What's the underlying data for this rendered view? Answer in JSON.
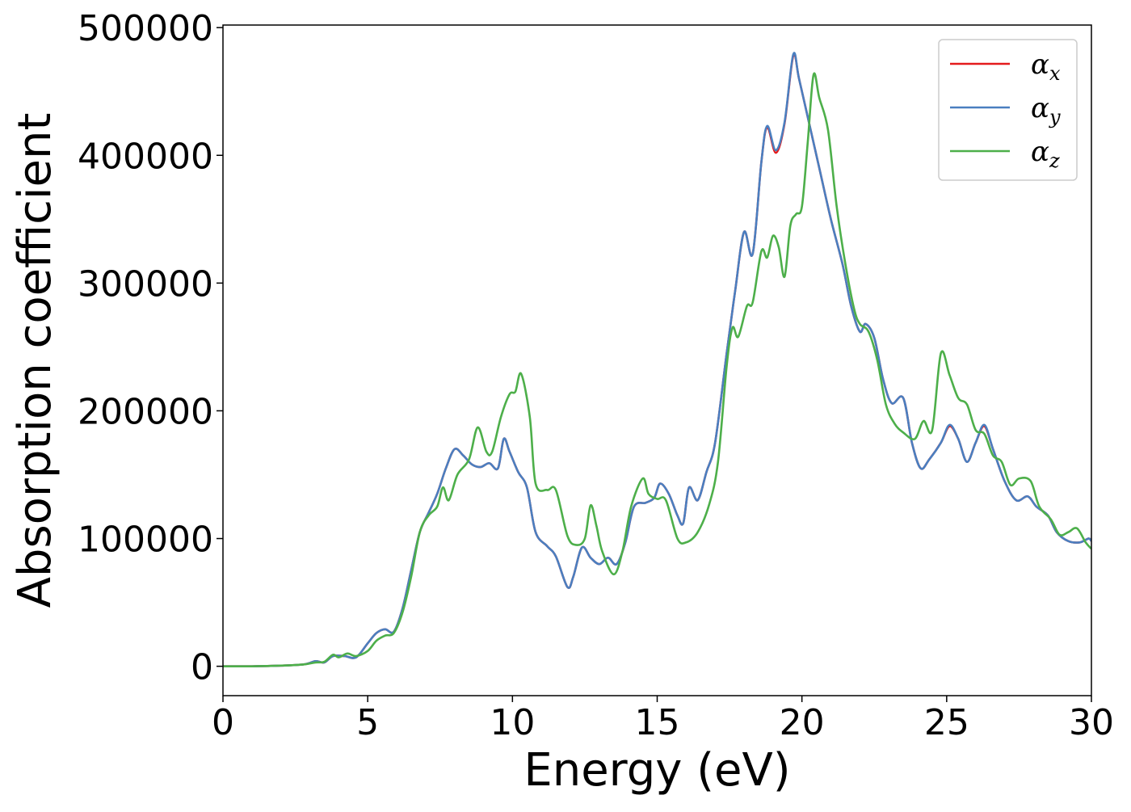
{
  "chart_data": {
    "type": "line",
    "xlabel": "Energy (eV)",
    "ylabel": "Absorption coefficient",
    "xlim": [
      0,
      30
    ],
    "ylim": [
      -23000,
      502000
    ],
    "x_ticks": [
      0,
      5,
      10,
      15,
      20,
      25,
      30
    ],
    "x_tick_labels": [
      "0",
      "5",
      "10",
      "15",
      "20",
      "25",
      "30"
    ],
    "y_ticks": [
      0,
      100000,
      200000,
      300000,
      400000,
      500000
    ],
    "y_tick_labels": [
      "0",
      "100000",
      "200000",
      "300000",
      "400000",
      "500000"
    ],
    "grid": false,
    "legend_placement": "top-right",
    "series": [
      {
        "name": "α_x",
        "label_symbol": "α",
        "label_subscript": "x",
        "color": "#e41a1c",
        "points": [
          [
            0,
            0
          ],
          [
            1,
            0
          ],
          [
            2,
            500
          ],
          [
            2.8,
            1500
          ],
          [
            3.2,
            4000
          ],
          [
            3.5,
            3000
          ],
          [
            3.8,
            8000
          ],
          [
            4.2,
            8000
          ],
          [
            4.6,
            7000
          ],
          [
            5.0,
            18000
          ],
          [
            5.3,
            26000
          ],
          [
            5.6,
            29000
          ],
          [
            5.9,
            27000
          ],
          [
            6.2,
            45000
          ],
          [
            6.5,
            75000
          ],
          [
            6.8,
            105000
          ],
          [
            7.1,
            120000
          ],
          [
            7.4,
            135000
          ],
          [
            7.7,
            155000
          ],
          [
            8.0,
            170000
          ],
          [
            8.3,
            165000
          ],
          [
            8.6,
            158000
          ],
          [
            8.9,
            156000
          ],
          [
            9.2,
            159000
          ],
          [
            9.5,
            155000
          ],
          [
            9.7,
            178000
          ],
          [
            9.9,
            168000
          ],
          [
            10.2,
            152000
          ],
          [
            10.5,
            140000
          ],
          [
            10.8,
            105000
          ],
          [
            11.2,
            94000
          ],
          [
            11.5,
            86000
          ],
          [
            11.9,
            62000
          ],
          [
            12.1,
            70000
          ],
          [
            12.4,
            93000
          ],
          [
            12.7,
            85000
          ],
          [
            13.0,
            80000
          ],
          [
            13.3,
            85000
          ],
          [
            13.6,
            80000
          ],
          [
            13.9,
            97000
          ],
          [
            14.2,
            125000
          ],
          [
            14.6,
            128000
          ],
          [
            14.9,
            132000
          ],
          [
            15.1,
            143000
          ],
          [
            15.4,
            135000
          ],
          [
            15.7,
            118000
          ],
          [
            15.9,
            112000
          ],
          [
            16.1,
            140000
          ],
          [
            16.4,
            130000
          ],
          [
            16.7,
            152000
          ],
          [
            17.0,
            175000
          ],
          [
            17.4,
            245000
          ],
          [
            17.7,
            295000
          ],
          [
            18.0,
            340000
          ],
          [
            18.3,
            323000
          ],
          [
            18.6,
            395000
          ],
          [
            18.8,
            422000
          ],
          [
            19.1,
            402000
          ],
          [
            19.4,
            425000
          ],
          [
            19.7,
            478000
          ],
          [
            19.9,
            460000
          ],
          [
            20.3,
            420000
          ],
          [
            20.6,
            390000
          ],
          [
            21.0,
            350000
          ],
          [
            21.4,
            315000
          ],
          [
            21.7,
            282000
          ],
          [
            22.0,
            262000
          ],
          [
            22.2,
            268000
          ],
          [
            22.5,
            257000
          ],
          [
            22.8,
            225000
          ],
          [
            23.1,
            206000
          ],
          [
            23.5,
            210000
          ],
          [
            23.8,
            175000
          ],
          [
            24.1,
            155000
          ],
          [
            24.4,
            162000
          ],
          [
            24.8,
            175000
          ],
          [
            25.1,
            188000
          ],
          [
            25.4,
            178000
          ],
          [
            25.7,
            160000
          ],
          [
            26.0,
            175000
          ],
          [
            26.3,
            188000
          ],
          [
            26.6,
            170000
          ],
          [
            27.0,
            145000
          ],
          [
            27.4,
            130000
          ],
          [
            27.8,
            133000
          ],
          [
            28.1,
            125000
          ],
          [
            28.5,
            118000
          ],
          [
            28.8,
            105000
          ],
          [
            29.2,
            98000
          ],
          [
            29.6,
            97000
          ],
          [
            29.9,
            100000
          ],
          [
            30,
            98000
          ]
        ]
      },
      {
        "name": "α_y",
        "label_symbol": "α",
        "label_subscript": "y",
        "color": "#4a7fc0",
        "points": [
          [
            0,
            0
          ],
          [
            1,
            0
          ],
          [
            2,
            500
          ],
          [
            2.8,
            1500
          ],
          [
            3.2,
            4000
          ],
          [
            3.5,
            3000
          ],
          [
            3.8,
            8000
          ],
          [
            4.2,
            8000
          ],
          [
            4.6,
            7000
          ],
          [
            5.0,
            18000
          ],
          [
            5.3,
            26000
          ],
          [
            5.6,
            29000
          ],
          [
            5.9,
            27000
          ],
          [
            6.2,
            45000
          ],
          [
            6.5,
            75000
          ],
          [
            6.8,
            105000
          ],
          [
            7.1,
            120000
          ],
          [
            7.4,
            135000
          ],
          [
            7.7,
            155000
          ],
          [
            8.0,
            170000
          ],
          [
            8.3,
            165000
          ],
          [
            8.6,
            158000
          ],
          [
            8.9,
            156000
          ],
          [
            9.2,
            159000
          ],
          [
            9.5,
            155000
          ],
          [
            9.7,
            178000
          ],
          [
            9.9,
            168000
          ],
          [
            10.2,
            152000
          ],
          [
            10.5,
            140000
          ],
          [
            10.8,
            105000
          ],
          [
            11.2,
            94000
          ],
          [
            11.5,
            86000
          ],
          [
            11.9,
            62000
          ],
          [
            12.1,
            70000
          ],
          [
            12.4,
            93000
          ],
          [
            12.7,
            85000
          ],
          [
            13.0,
            80000
          ],
          [
            13.3,
            85000
          ],
          [
            13.6,
            80000
          ],
          [
            13.9,
            97000
          ],
          [
            14.2,
            125000
          ],
          [
            14.6,
            128000
          ],
          [
            14.9,
            132000
          ],
          [
            15.1,
            143000
          ],
          [
            15.4,
            135000
          ],
          [
            15.7,
            118000
          ],
          [
            15.9,
            112000
          ],
          [
            16.1,
            140000
          ],
          [
            16.4,
            130000
          ],
          [
            16.7,
            152000
          ],
          [
            17.0,
            175000
          ],
          [
            17.4,
            245000
          ],
          [
            17.7,
            295000
          ],
          [
            18.0,
            340000
          ],
          [
            18.3,
            323000
          ],
          [
            18.6,
            395000
          ],
          [
            18.8,
            423000
          ],
          [
            19.1,
            404000
          ],
          [
            19.4,
            426000
          ],
          [
            19.7,
            479000
          ],
          [
            19.9,
            460000
          ],
          [
            20.3,
            420000
          ],
          [
            20.6,
            390000
          ],
          [
            21.0,
            350000
          ],
          [
            21.4,
            315000
          ],
          [
            21.7,
            282000
          ],
          [
            22.0,
            262000
          ],
          [
            22.2,
            268000
          ],
          [
            22.5,
            257000
          ],
          [
            22.8,
            225000
          ],
          [
            23.1,
            206000
          ],
          [
            23.5,
            210000
          ],
          [
            23.8,
            175000
          ],
          [
            24.1,
            155000
          ],
          [
            24.4,
            162000
          ],
          [
            24.8,
            175000
          ],
          [
            25.1,
            189000
          ],
          [
            25.4,
            178000
          ],
          [
            25.7,
            160000
          ],
          [
            26.0,
            175000
          ],
          [
            26.3,
            189000
          ],
          [
            26.6,
            170000
          ],
          [
            27.0,
            145000
          ],
          [
            27.4,
            130000
          ],
          [
            27.8,
            133000
          ],
          [
            28.1,
            125000
          ],
          [
            28.5,
            118000
          ],
          [
            28.8,
            105000
          ],
          [
            29.2,
            98000
          ],
          [
            29.6,
            97000
          ],
          [
            29.9,
            100000
          ],
          [
            30,
            98000
          ]
        ]
      },
      {
        "name": "α_z",
        "label_symbol": "α",
        "label_subscript": "z",
        "color": "#4daf4a",
        "points": [
          [
            0,
            0
          ],
          [
            1,
            0
          ],
          [
            2,
            500
          ],
          [
            2.8,
            1500
          ],
          [
            3.2,
            3000
          ],
          [
            3.5,
            3500
          ],
          [
            3.8,
            9000
          ],
          [
            4.0,
            7000
          ],
          [
            4.3,
            10000
          ],
          [
            4.6,
            8000
          ],
          [
            5.0,
            12000
          ],
          [
            5.3,
            20000
          ],
          [
            5.6,
            24000
          ],
          [
            5.9,
            26000
          ],
          [
            6.2,
            42000
          ],
          [
            6.5,
            70000
          ],
          [
            6.8,
            105000
          ],
          [
            7.1,
            118000
          ],
          [
            7.4,
            125000
          ],
          [
            7.6,
            140000
          ],
          [
            7.8,
            130000
          ],
          [
            8.1,
            150000
          ],
          [
            8.5,
            162000
          ],
          [
            8.8,
            187000
          ],
          [
            9.1,
            168000
          ],
          [
            9.3,
            168000
          ],
          [
            9.6,
            195000
          ],
          [
            9.9,
            213000
          ],
          [
            10.1,
            215000
          ],
          [
            10.3,
            229000
          ],
          [
            10.6,
            195000
          ],
          [
            10.8,
            143000
          ],
          [
            11.2,
            138000
          ],
          [
            11.5,
            138000
          ],
          [
            11.9,
            102000
          ],
          [
            12.2,
            95000
          ],
          [
            12.5,
            100000
          ],
          [
            12.7,
            126000
          ],
          [
            12.9,
            110000
          ],
          [
            13.1,
            90000
          ],
          [
            13.5,
            72000
          ],
          [
            13.8,
            90000
          ],
          [
            14.1,
            125000
          ],
          [
            14.5,
            147000
          ],
          [
            14.7,
            135000
          ],
          [
            15.0,
            131000
          ],
          [
            15.3,
            130000
          ],
          [
            15.7,
            100000
          ],
          [
            16.0,
            97000
          ],
          [
            16.4,
            105000
          ],
          [
            16.8,
            127000
          ],
          [
            17.1,
            160000
          ],
          [
            17.4,
            235000
          ],
          [
            17.6,
            265000
          ],
          [
            17.8,
            258000
          ],
          [
            18.1,
            282000
          ],
          [
            18.3,
            285000
          ],
          [
            18.6,
            325000
          ],
          [
            18.8,
            320000
          ],
          [
            19.0,
            337000
          ],
          [
            19.2,
            328000
          ],
          [
            19.4,
            305000
          ],
          [
            19.6,
            345000
          ],
          [
            19.8,
            354000
          ],
          [
            20.0,
            360000
          ],
          [
            20.2,
            410000
          ],
          [
            20.4,
            463000
          ],
          [
            20.6,
            445000
          ],
          [
            20.9,
            420000
          ],
          [
            21.2,
            360000
          ],
          [
            21.5,
            315000
          ],
          [
            21.8,
            280000
          ],
          [
            22.0,
            268000
          ],
          [
            22.3,
            262000
          ],
          [
            22.6,
            240000
          ],
          [
            22.9,
            205000
          ],
          [
            23.2,
            190000
          ],
          [
            23.5,
            183000
          ],
          [
            23.9,
            178000
          ],
          [
            24.2,
            192000
          ],
          [
            24.5,
            185000
          ],
          [
            24.8,
            245000
          ],
          [
            25.1,
            228000
          ],
          [
            25.4,
            210000
          ],
          [
            25.7,
            205000
          ],
          [
            26.0,
            185000
          ],
          [
            26.3,
            182000
          ],
          [
            26.6,
            165000
          ],
          [
            26.9,
            160000
          ],
          [
            27.2,
            142000
          ],
          [
            27.5,
            147000
          ],
          [
            27.9,
            145000
          ],
          [
            28.2,
            125000
          ],
          [
            28.6,
            115000
          ],
          [
            28.9,
            103000
          ],
          [
            29.2,
            105000
          ],
          [
            29.5,
            108000
          ],
          [
            29.8,
            97000
          ],
          [
            30,
            92000
          ]
        ]
      }
    ]
  }
}
